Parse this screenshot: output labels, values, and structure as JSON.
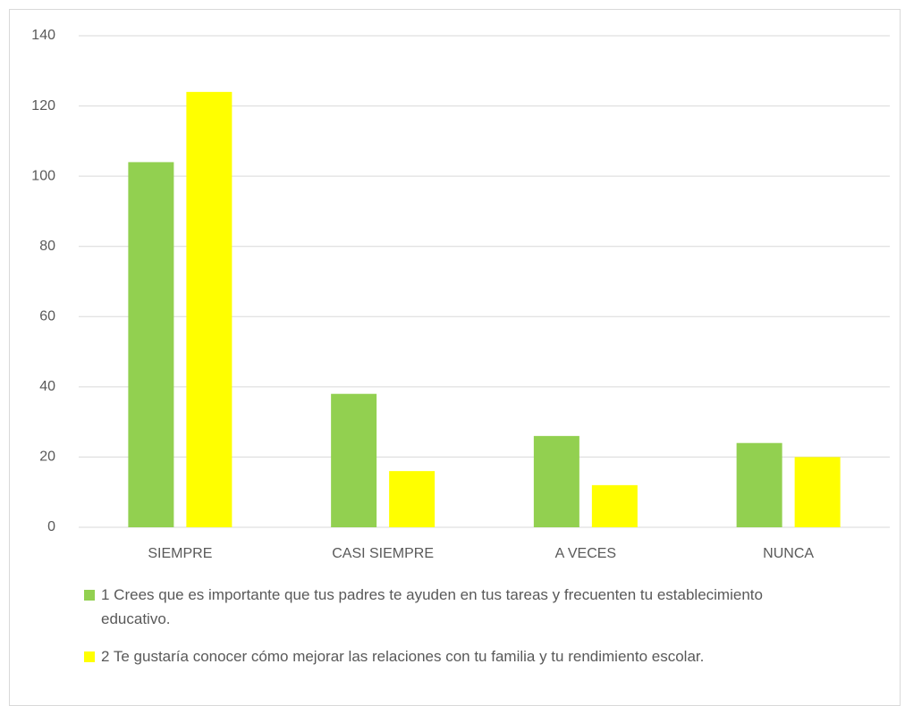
{
  "chart_data": {
    "type": "bar",
    "categories": [
      "SIEMPRE",
      "CASI SIEMPRE",
      "A VECES",
      "NUNCA"
    ],
    "series": [
      {
        "name": "1 Crees que es importante que tus padres te ayuden en tus tareas y frecuenten tu establecimiento educativo.",
        "color": "#92d050",
        "values": [
          104,
          38,
          26,
          24
        ]
      },
      {
        "name": "2 Te gustaría conocer cómo mejorar las relaciones con tu familia y tu rendimiento escolar.",
        "color": "#ffff00",
        "values": [
          124,
          16,
          12,
          20
        ]
      }
    ],
    "ylim": [
      0,
      140
    ],
    "yticks": [
      0,
      20,
      40,
      60,
      80,
      100,
      120,
      140
    ],
    "grid": true,
    "legend": "bottom"
  }
}
